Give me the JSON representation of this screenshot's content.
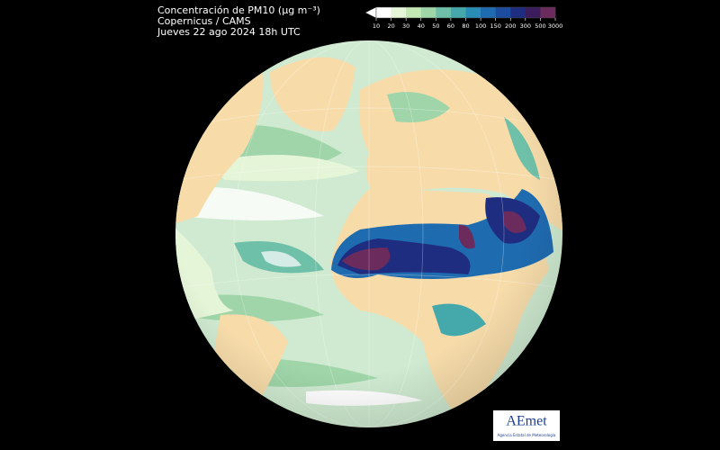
{
  "header": {
    "lines": [
      "Concentración de PM10 (µg m⁻³)",
      "Copernicus / CAMS",
      "Jueves 22 ago 2024 18h UTC"
    ]
  },
  "colorbar": {
    "ticks": [
      10,
      20,
      30,
      40,
      50,
      60,
      80,
      100,
      150,
      200,
      300,
      500,
      3000
    ],
    "under_color": "#ffffff",
    "colors": [
      "#ffffff",
      "#e5f5d8",
      "#c4e8b4",
      "#9fd5a8",
      "#6fc0a8",
      "#45a9ac",
      "#2a8db5",
      "#1f6bb0",
      "#1c4c9e",
      "#1f2d80",
      "#3b1d5e",
      "#6b2b5c"
    ]
  },
  "logo": {
    "name": "AEmet",
    "subtitle": "Agencia Estatal de Meteorología"
  }
}
